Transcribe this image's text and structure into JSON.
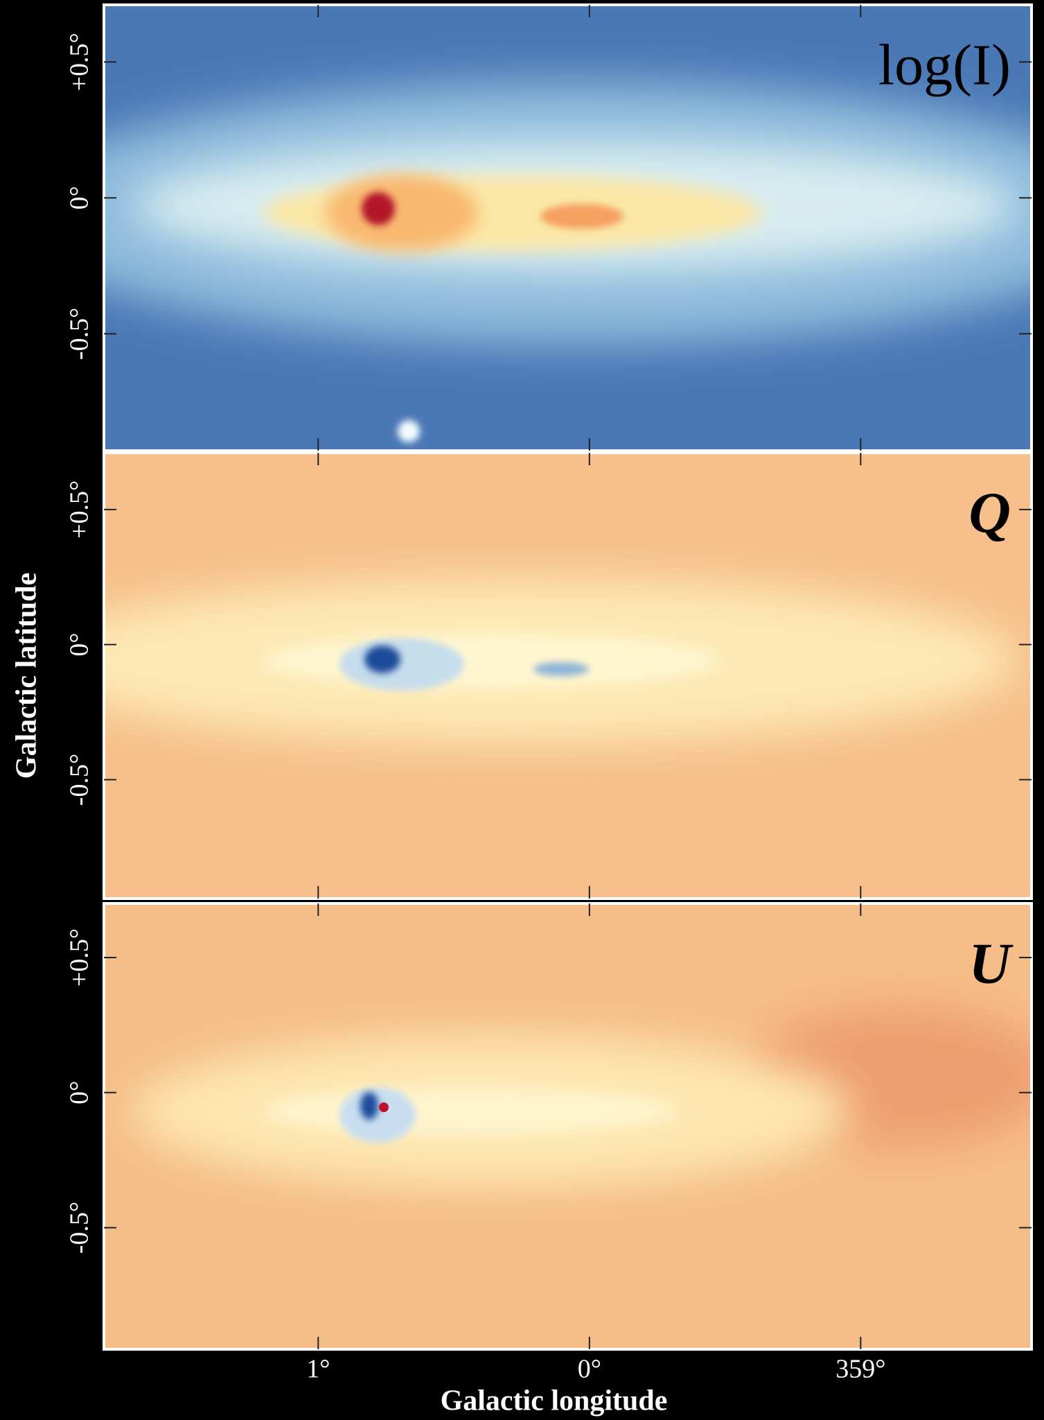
{
  "chart_data": [
    {
      "type": "image",
      "title": "log(I)",
      "ylim": [
        -0.93,
        0.71
      ],
      "yticks": [
        {
          "value": 0.5,
          "label": "+0.5°"
        },
        {
          "value": 0,
          "label": "0°"
        },
        {
          "value": -0.5,
          "label": "-0.5°"
        }
      ]
    },
    {
      "type": "image",
      "title": "Q",
      "ylabel": "Galactic latitude",
      "ylim": [
        -0.94,
        0.71
      ],
      "yticks": [
        {
          "value": 0.5,
          "label": "+0.5°"
        },
        {
          "value": 0,
          "label": "0°"
        },
        {
          "value": -0.5,
          "label": "-0.5°"
        }
      ]
    },
    {
      "type": "image",
      "title": "U",
      "xlabel": "Galactic longitude",
      "ylim": [
        -0.95,
        0.7
      ],
      "yticks": [
        {
          "value": 0.5,
          "label": "+0.5°"
        },
        {
          "value": 0,
          "label": "0°"
        },
        {
          "value": -0.5,
          "label": "-0.5°"
        }
      ],
      "xlim": [
        1.79,
        -1.63
      ],
      "xticks": [
        {
          "value": 1,
          "label": "1°"
        },
        {
          "value": 0,
          "label": "0°"
        },
        {
          "value": -1,
          "label": "359°"
        }
      ]
    }
  ]
}
